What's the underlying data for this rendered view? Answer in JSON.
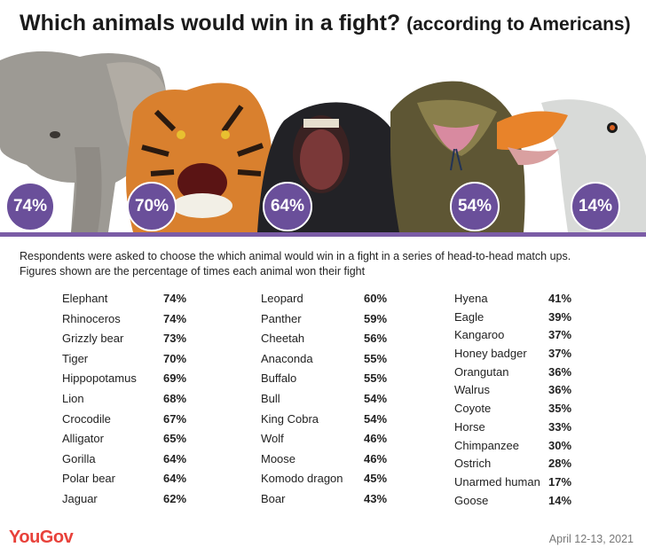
{
  "header": {
    "title": "Which animals would win in a fight?",
    "subtitle": "(according to Americans)"
  },
  "banner": {
    "badges": [
      "74%",
      "70%",
      "64%",
      "54%",
      "14%"
    ]
  },
  "description": {
    "line1": "Respondents were asked to choose the which animal would win in a fight in a series of head-to-head match ups.",
    "line2": "Figures shown are the percentage of times each animal won their fight"
  },
  "chart_data": {
    "type": "table",
    "columns": [
      [
        {
          "name": "Elephant",
          "value": "74%"
        },
        {
          "name": "Rhinoceros",
          "value": "74%"
        },
        {
          "name": "Grizzly bear",
          "value": "73%"
        },
        {
          "name": "Tiger",
          "value": "70%"
        },
        {
          "name": "Hippopotamus",
          "value": "69%"
        },
        {
          "name": "Lion",
          "value": "68%"
        },
        {
          "name": "Crocodile",
          "value": "67%"
        },
        {
          "name": "Alligator",
          "value": "65%"
        },
        {
          "name": "Gorilla",
          "value": "64%"
        },
        {
          "name": "Polar bear",
          "value": "64%"
        },
        {
          "name": "Jaguar",
          "value": "62%"
        }
      ],
      [
        {
          "name": "Leopard",
          "value": "60%"
        },
        {
          "name": "Panther",
          "value": "59%"
        },
        {
          "name": "Cheetah",
          "value": "56%"
        },
        {
          "name": "Anaconda",
          "value": "55%"
        },
        {
          "name": "Buffalo",
          "value": "55%"
        },
        {
          "name": "Bull",
          "value": "54%"
        },
        {
          "name": "King Cobra",
          "value": "54%"
        },
        {
          "name": "Wolf",
          "value": "46%"
        },
        {
          "name": "Moose",
          "value": "46%"
        },
        {
          "name": "Komodo dragon",
          "value": "45%"
        },
        {
          "name": "Boar",
          "value": "43%"
        }
      ],
      [
        {
          "name": "Hyena",
          "value": "41%"
        },
        {
          "name": "Eagle",
          "value": "39%"
        },
        {
          "name": "Kangaroo",
          "value": "37%"
        },
        {
          "name": "Honey badger",
          "value": "37%"
        },
        {
          "name": "Orangutan",
          "value": "36%"
        },
        {
          "name": "Walrus",
          "value": "36%"
        },
        {
          "name": "Coyote",
          "value": "35%"
        },
        {
          "name": "Horse",
          "value": "33%"
        },
        {
          "name": "Chimpanzee",
          "value": "30%"
        },
        {
          "name": "Ostrich",
          "value": "28%"
        },
        {
          "name": "Unarmed human",
          "value": "17%"
        },
        {
          "name": "Goose",
          "value": "14%"
        }
      ]
    ]
  },
  "footer": {
    "logo": "YouGov",
    "date": "April 12-13, 2021"
  },
  "colors": {
    "accent": "#7b5ca6",
    "badge": "#6a4f9a",
    "brand": "#e8413a"
  }
}
